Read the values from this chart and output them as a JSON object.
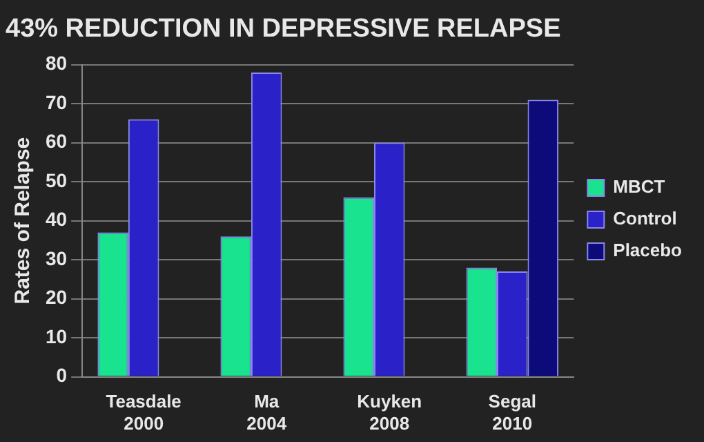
{
  "chart_data": {
    "type": "bar",
    "title": "43% REDUCTION IN DEPRESSIVE RELAPSE",
    "ylabel": "Rates of Relapse",
    "categories": [
      "Teasdale 2000",
      "Ma 2004",
      "Kuyken 2008",
      "Segal 2010"
    ],
    "series": [
      {
        "name": "MBCT",
        "color": "#19e38f",
        "values": [
          37,
          36,
          46,
          28
        ]
      },
      {
        "name": "Control",
        "color": "#2a22c8",
        "values": [
          66,
          78,
          60,
          27
        ]
      },
      {
        "name": "Placebo",
        "color": "#0d0a7a",
        "values": [
          0,
          0,
          0,
          71
        ]
      }
    ],
    "ylim": [
      0,
      80
    ],
    "yticks": [
      0,
      10,
      20,
      30,
      40,
      50,
      60,
      70,
      80
    ],
    "grid": "y",
    "legend": "right"
  }
}
